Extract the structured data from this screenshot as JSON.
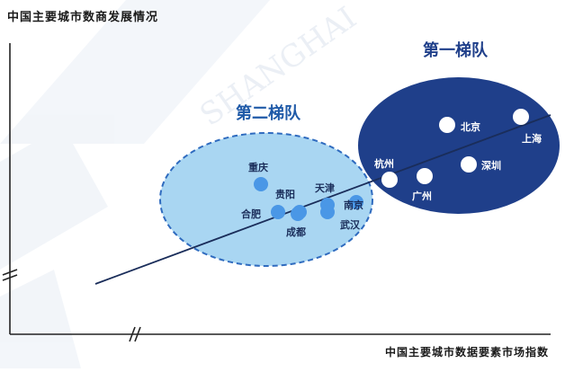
{
  "diagram": {
    "title": "中国主要城市数商发展情况",
    "x_axis_label": "中国主要城市数据要素市场指数",
    "watermark": "SHANGHAI",
    "colors": {
      "tier1_fill": "#1f3f8a",
      "tier2_fill": "#a9d6f2",
      "tier2_stroke": "#2f6bbf",
      "dot_tier2": "#4a97e6",
      "dot_tier1": "#ffffff",
      "axis": "#222222",
      "trend": "#1a2d5a"
    },
    "groups": [
      {
        "id": "tier1",
        "label": "第一梯队",
        "cities": [
          {
            "name": "北京"
          },
          {
            "name": "上海"
          },
          {
            "name": "深圳"
          },
          {
            "name": "杭州"
          },
          {
            "name": "广州"
          }
        ]
      },
      {
        "id": "tier2",
        "label": "第二梯队",
        "cities": [
          {
            "name": "重庆"
          },
          {
            "name": "贵阳"
          },
          {
            "name": "天津"
          },
          {
            "name": "南京"
          },
          {
            "name": "合肥"
          },
          {
            "name": "成都"
          },
          {
            "name": "武汉"
          }
        ]
      }
    ]
  }
}
